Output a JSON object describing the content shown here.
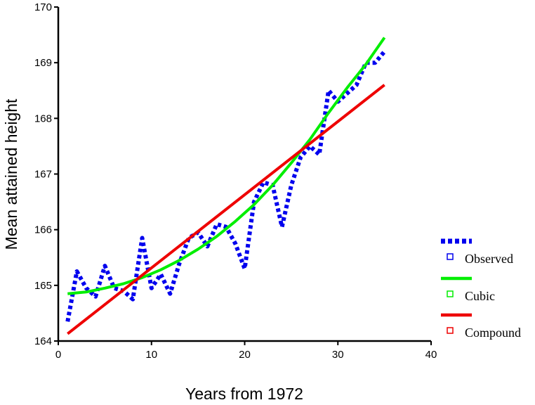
{
  "chart_data": {
    "type": "line",
    "title": "",
    "xlabel": "Years from 1972",
    "ylabel": "Mean attained height",
    "xlim": [
      0,
      40
    ],
    "ylim": [
      164,
      170
    ],
    "xticks": [
      "0",
      "10",
      "20",
      "30",
      "40"
    ],
    "yticks": [
      "164",
      "165",
      "166",
      "167",
      "168",
      "169",
      "170"
    ],
    "grid": false,
    "legend_position": "right",
    "series": [
      {
        "name": "Observed",
        "color": "#0000ee",
        "style": "dotted",
        "x": [
          1,
          2,
          3,
          4,
          5,
          6,
          7,
          8,
          9,
          10,
          11,
          12,
          13,
          14,
          15,
          16,
          17,
          18,
          19,
          20,
          21,
          22,
          23,
          24,
          25,
          26,
          27,
          28,
          29,
          30,
          31,
          32,
          33,
          34,
          35
        ],
        "y": [
          164.35,
          165.25,
          164.95,
          164.8,
          165.35,
          164.95,
          164.9,
          164.75,
          165.85,
          164.95,
          165.2,
          164.85,
          165.4,
          165.85,
          165.95,
          165.7,
          166.1,
          166.05,
          165.75,
          165.3,
          166.5,
          166.85,
          166.8,
          166.05,
          166.8,
          167.3,
          167.5,
          167.35,
          168.5,
          168.3,
          168.45,
          168.6,
          169.0,
          169.0,
          169.2
        ]
      },
      {
        "name": "Cubic",
        "color": "#00ee00",
        "style": "solid",
        "x": [
          1,
          3,
          5,
          7,
          9,
          11,
          13,
          15,
          17,
          19,
          21,
          23,
          25,
          27,
          29,
          31,
          33,
          35
        ],
        "y": [
          164.85,
          164.88,
          164.95,
          165.03,
          165.14,
          165.28,
          165.45,
          165.65,
          165.88,
          166.15,
          166.45,
          166.8,
          167.2,
          167.62,
          168.1,
          168.55,
          168.97,
          169.45
        ]
      },
      {
        "name": "Compound",
        "color": "#ee0000",
        "style": "solid",
        "x": [
          1,
          35
        ],
        "y": [
          164.13,
          168.6
        ]
      }
    ]
  }
}
